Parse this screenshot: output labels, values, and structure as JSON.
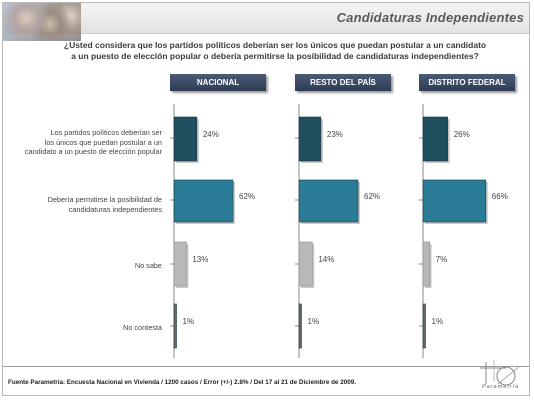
{
  "header": {
    "title": "Candidaturas Independientes"
  },
  "question": {
    "line1": "¿Usted considera que los partidos políticos deberían ser los únicos que puedan postular a un candidato",
    "line2": "a un puesto de elección popular o debería permitirse la posibilidad de candidaturas independientes?"
  },
  "categories": {
    "c0": [
      "Los partidos políticos deberían ser",
      "los únicos que puedan postular a un",
      "candidato a un puesto de elección popular"
    ],
    "c1": [
      "Debería permitirse la posibilidad de",
      "candidaturas independientes"
    ],
    "c2": [
      "No sabe"
    ],
    "c3": [
      "No contesta"
    ]
  },
  "regions": {
    "r0": "NACIONAL",
    "r1": "RESTO DEL PAÍS",
    "r2": "DISTRITO FEDERAL"
  },
  "chart_data": {
    "type": "bar",
    "orientation": "horizontal",
    "categories": [
      "Los partidos políticos deberían ser los únicos que puedan postular a un candidato a un puesto de elección popular",
      "Debería permitirse la posibilidad de candidaturas independientes",
      "No sabe",
      "No contesta"
    ],
    "series": [
      {
        "name": "NACIONAL",
        "values": [
          24,
          62,
          13,
          1
        ],
        "labels": [
          "24%",
          "62%",
          "13%",
          "1%"
        ]
      },
      {
        "name": "RESTO DEL PAÍS",
        "values": [
          23,
          62,
          14,
          1
        ],
        "labels": [
          "23%",
          "62%",
          "14%",
          "1%"
        ]
      },
      {
        "name": "DISTRITO FEDERAL",
        "values": [
          26,
          66,
          7,
          1
        ],
        "labels": [
          "26%",
          "66%",
          "7%",
          "1%"
        ]
      }
    ],
    "bar_colors": [
      "#1f4e5e",
      "#2a7c96",
      "#b8b8b8",
      "#6a6a6a"
    ],
    "xlim": [
      0,
      100
    ],
    "grid": false,
    "legend": "none"
  },
  "footer": {
    "source": "Fuente Parametría: Encuesta Nacional en Vivienda / 1200 casos / Error (+/-) 2.8% / Del 17 al 21 de Diciembre de 2009.",
    "brand": "Parametría"
  }
}
